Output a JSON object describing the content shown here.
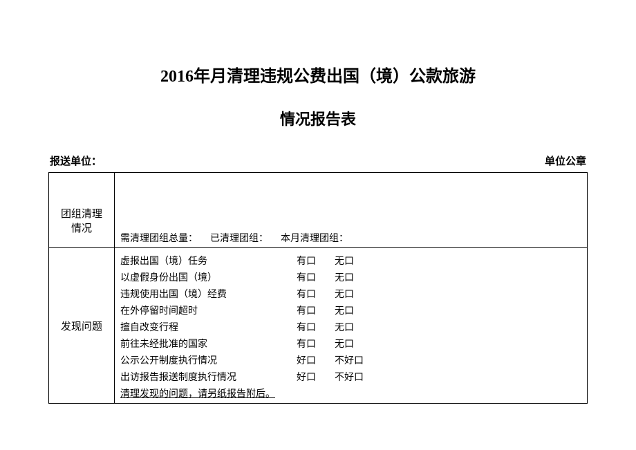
{
  "title": "2016年月清理违规公费出国（境）公款旅游",
  "subtitle": "情况报告表",
  "header": {
    "left": "报送单位：",
    "right": "单位公章"
  },
  "section1": {
    "label_line1": "团组清理",
    "label_line2": "情况",
    "fields": {
      "total": "需清理团组总量：",
      "cleaned": "已清理团组：",
      "month": "本月清理团组："
    }
  },
  "section2": {
    "label": "发现问题",
    "options_yn": {
      "yes": "有口",
      "no": "无口"
    },
    "options_good": {
      "good": "好口",
      "bad": "不好口"
    },
    "rows": [
      {
        "text": "虚报出国（境）任务",
        "type": "yn"
      },
      {
        "text": "以虚假身份出国（境）",
        "type": "yn"
      },
      {
        "text": "违规使用出国（境）经费",
        "type": "yn"
      },
      {
        "text": "在外停留时间超时",
        "type": "yn"
      },
      {
        "text": "擅自改变行程",
        "type": "yn"
      },
      {
        "text": "前往未经批准的国家",
        "type": "yn"
      },
      {
        "text": "公示公开制度执行情况",
        "type": "good"
      },
      {
        "text": "出访报告报送制度执行情况",
        "type": "good"
      }
    ],
    "footer": "清理发现的问题，请另纸报告附后。"
  }
}
